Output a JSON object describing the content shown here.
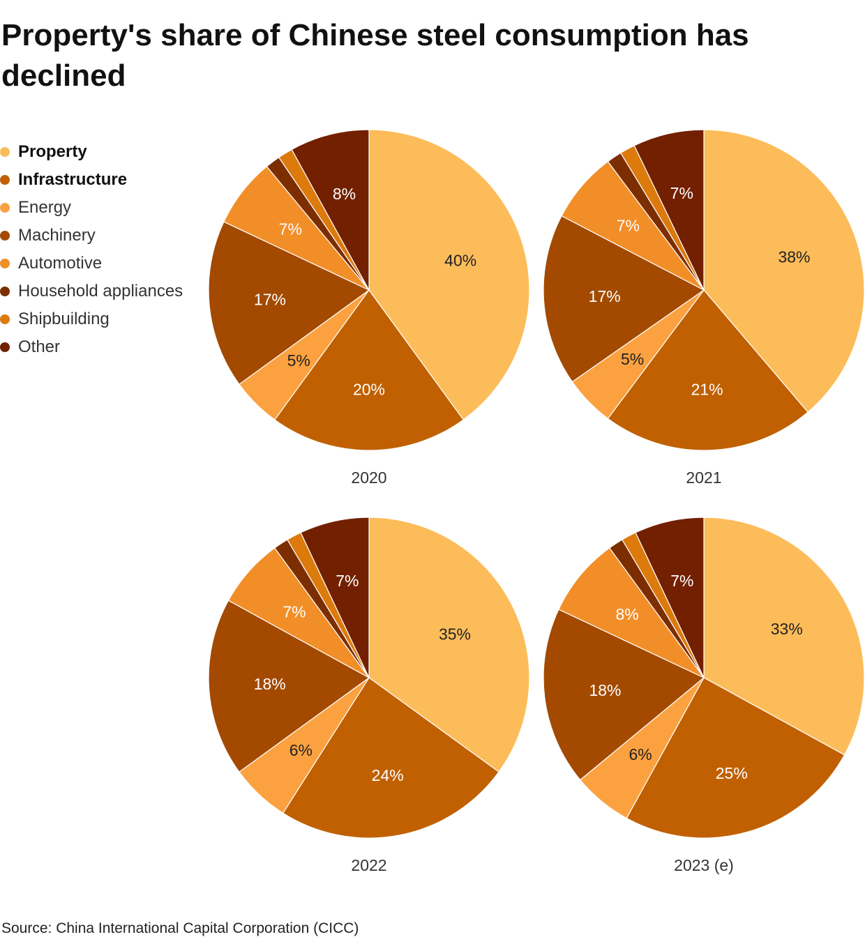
{
  "title": "Property's share of Chinese steel consumption has declined",
  "source": "Source: China International Capital Corporation (CICC)",
  "legend": [
    {
      "label": "Property",
      "bold": true
    },
    {
      "label": "Infrastructure",
      "bold": true
    },
    {
      "label": "Energy",
      "bold": false
    },
    {
      "label": "Machinery",
      "bold": false
    },
    {
      "label": "Automotive",
      "bold": false
    },
    {
      "label": "Household appliances",
      "bold": false
    },
    {
      "label": "Shipbuilding",
      "bold": false
    },
    {
      "label": "Other",
      "bold": false
    }
  ],
  "chart_data": {
    "type": "pie",
    "categories": [
      "Property",
      "Infrastructure",
      "Energy",
      "Machinery",
      "Automotive",
      "Household appliances",
      "Shipbuilding",
      "Other"
    ],
    "colors": [
      "#fdbc5a",
      "#c06000",
      "#fca140",
      "#a34a00",
      "#f28e28",
      "#7d2e00",
      "#dc7a0c",
      "#722000"
    ],
    "label_colors": [
      "#222222",
      "#ffffff",
      "#222222",
      "#ffffff",
      "#ffffff",
      "#ffffff",
      "#ffffff",
      "#ffffff"
    ],
    "legend_placement": "top-left",
    "pies": [
      {
        "label": "2020",
        "values": [
          40,
          20,
          5,
          17,
          7,
          1.5,
          1.5,
          8
        ],
        "labels": [
          "40%",
          "20%",
          "5%",
          "17%",
          "7%",
          "",
          "",
          "8%"
        ]
      },
      {
        "label": "2021",
        "values": [
          38,
          21,
          5,
          17,
          7,
          1.5,
          1.5,
          7
        ],
        "labels": [
          "38%",
          "21%",
          "5%",
          "17%",
          "7%",
          "",
          "",
          "7%"
        ]
      },
      {
        "label": "2022",
        "values": [
          35,
          24,
          6,
          18,
          7,
          1.5,
          1.5,
          7
        ],
        "labels": [
          "35%",
          "24%",
          "6%",
          "18%",
          "7%",
          "",
          "",
          "7%"
        ]
      },
      {
        "label": "2023 (e)",
        "values": [
          33,
          25,
          6,
          18,
          8,
          1.5,
          1.5,
          7
        ],
        "labels": [
          "33%",
          "25%",
          "6%",
          "18%",
          "8%",
          "",
          "",
          "7%"
        ]
      }
    ]
  }
}
